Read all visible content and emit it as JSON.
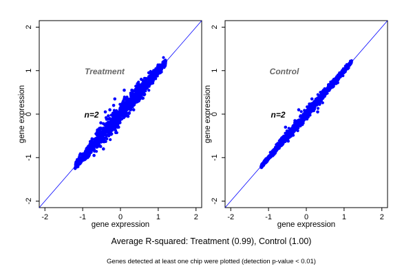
{
  "figure": {
    "caption": "Average R-squared: Treatment (0.99), Control (1.00)",
    "footnote": "Genes detected at least one chip were plotted (detection p-value < 0.01)"
  },
  "colors": {
    "points": "#0000ff",
    "identity_line": "#0000ff",
    "panel_title": "#666666"
  },
  "chart_data": [
    {
      "type": "scatter",
      "title": "Treatment",
      "annotation": "n=2",
      "xlabel": "gene expression",
      "ylabel": "gene expression",
      "xlim": [
        -2.15,
        2.15
      ],
      "ylim": [
        -2.15,
        2.15
      ],
      "xticks": [
        -2,
        -1,
        0,
        1,
        2
      ],
      "yticks": [
        -2,
        -1,
        0,
        1,
        2
      ],
      "grid": false,
      "reference_line": {
        "slope": 1,
        "intercept": 0
      },
      "series": [
        {
          "color": "#0000ff",
          "cloud": {
            "x_range": [
              -1.2,
              1.2
            ],
            "spread": 0.1
          },
          "points": [
            [
              -1.18,
              -1.17
            ],
            [
              -1.12,
              -1.08
            ],
            [
              -0.98,
              -0.95
            ],
            [
              -0.85,
              -0.78
            ],
            [
              -0.75,
              -0.58
            ],
            [
              -0.6,
              -0.36
            ],
            [
              -0.45,
              -0.22
            ],
            [
              -0.32,
              -0.04
            ],
            [
              -0.28,
              0.1
            ],
            [
              -0.18,
              0.2
            ],
            [
              -0.52,
              -0.2
            ],
            [
              -0.4,
              0.05
            ],
            [
              -0.62,
              -0.45
            ],
            [
              0.3,
              0.55
            ],
            [
              0.45,
              0.7
            ],
            [
              0.55,
              0.8
            ],
            [
              0.65,
              0.55
            ],
            [
              0.75,
              0.95
            ],
            [
              0.88,
              1.0
            ],
            [
              1.0,
              1.08
            ],
            [
              1.12,
              1.15
            ],
            [
              -0.7,
              -0.95
            ],
            [
              -0.45,
              -0.8
            ],
            [
              0.2,
              -0.05
            ],
            [
              0.35,
              0.1
            ],
            [
              -0.15,
              0.35
            ],
            [
              0.1,
              0.55
            ],
            [
              -0.05,
              -0.3
            ]
          ]
        }
      ]
    },
    {
      "type": "scatter",
      "title": "Control",
      "annotation": "n=2",
      "xlabel": "gene expression",
      "ylabel": "gene expression",
      "xlim": [
        -2.15,
        2.15
      ],
      "ylim": [
        -2.15,
        2.15
      ],
      "xticks": [
        -2,
        -1,
        0,
        1,
        2
      ],
      "yticks": [
        -2,
        -1,
        0,
        1,
        2
      ],
      "grid": false,
      "reference_line": {
        "slope": 1,
        "intercept": 0
      },
      "series": [
        {
          "color": "#0000ff",
          "cloud": {
            "x_range": [
              -1.2,
              1.2
            ],
            "spread": 0.05
          },
          "points": [
            [
              -1.15,
              -1.16
            ],
            [
              -1.08,
              -1.05
            ],
            [
              -0.95,
              -0.88
            ],
            [
              -0.8,
              -0.85
            ],
            [
              -0.65,
              -0.55
            ],
            [
              -0.48,
              -0.62
            ],
            [
              -0.3,
              -0.15
            ],
            [
              -0.15,
              -0.25
            ],
            [
              0.1,
              0.2
            ],
            [
              0.28,
              0.22
            ],
            [
              0.45,
              0.52
            ],
            [
              0.6,
              0.65
            ],
            [
              0.78,
              0.8
            ],
            [
              0.95,
              0.98
            ],
            [
              1.1,
              1.12
            ],
            [
              1.18,
              1.17
            ],
            [
              -0.55,
              -0.3
            ],
            [
              -0.2,
              0.1
            ],
            [
              0.3,
              0.05
            ],
            [
              0.15,
              0.35
            ]
          ]
        }
      ]
    }
  ]
}
